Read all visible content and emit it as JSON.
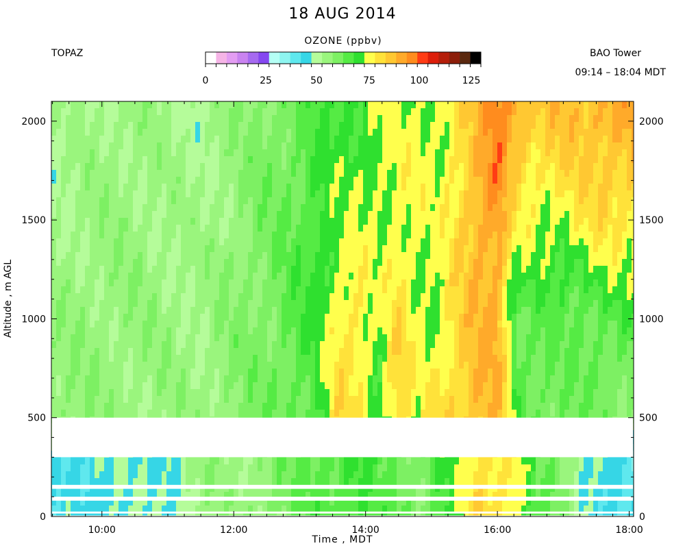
{
  "chart_data": {
    "type": "heatmap",
    "title": "18 AUG 2014",
    "instrument": "TOPAZ",
    "site": "BAO Tower",
    "time_range": "09:14 – 18:04 MDT",
    "colorbar": {
      "label": "OZONE (ppbv)",
      "range": [
        0,
        125
      ],
      "ticks": [
        "0",
        "25",
        "50",
        "75",
        "100",
        "125"
      ],
      "colors": [
        "#ffffff",
        "#f5b4e6",
        "#e39df2",
        "#c983f0",
        "#a66af0",
        "#8547f0",
        "#b4fff5",
        "#8ef5f0",
        "#5fe8ee",
        "#36d6e6",
        "#b5fc9a",
        "#9af57d",
        "#7df063",
        "#55eb44",
        "#2fe02f",
        "#ffff4d",
        "#ffe23a",
        "#ffc832",
        "#ffaa2a",
        "#ff8c1e",
        "#ff3c14",
        "#dc1e0a",
        "#b41e0a",
        "#8c1e0a",
        "#5a280f",
        "#000000"
      ]
    },
    "xlabel": "Time , MDT",
    "ylabel": "Altitude , m AGL",
    "xlim": [
      "09:14",
      "18:04"
    ],
    "x_ticks": [
      "10:00",
      "12:00",
      "14:00",
      "16:00",
      "18:00"
    ],
    "ylim": [
      0,
      2100
    ],
    "y_ticks": [
      "0",
      "500",
      "1000",
      "1500",
      "2000"
    ],
    "missing_altitude_bands_m": [
      [
        300,
        500
      ],
      [
        140,
        160
      ],
      [
        80,
        100
      ],
      [
        15,
        25
      ],
      [
        0,
        5
      ]
    ],
    "times_hr": [
      9.3,
      10.0,
      10.5,
      11.0,
      11.5,
      12.0,
      12.5,
      13.0,
      13.3,
      13.6,
      13.9,
      14.2,
      14.5,
      14.8,
      15.1,
      15.4,
      15.7,
      16.0,
      16.3,
      16.6,
      17.0,
      17.3,
      17.6,
      18.0
    ],
    "altitudes_m": [
      0,
      300,
      500,
      1000,
      1500,
      2000
    ],
    "ozone_ppbv": [
      [
        43,
        48,
        47,
        48,
        55,
        55,
        58,
        62,
        65,
        66,
        68,
        63,
        63,
        60,
        66,
        70,
        80,
        80,
        75,
        62,
        60,
        50,
        45,
        40
      ],
      [
        43,
        48,
        47,
        48,
        55,
        55,
        58,
        62,
        65,
        66,
        68,
        63,
        63,
        60,
        66,
        70,
        80,
        80,
        75,
        62,
        60,
        50,
        45,
        40
      ],
      [
        58,
        56,
        55,
        55,
        55,
        58,
        60,
        63,
        68,
        80,
        76,
        70,
        82,
        72,
        80,
        82,
        86,
        86,
        66,
        62,
        62,
        60,
        60,
        58
      ],
      [
        55,
        56,
        56,
        55,
        54,
        58,
        60,
        66,
        68,
        78,
        78,
        70,
        80,
        74,
        72,
        80,
        86,
        88,
        62,
        64,
        62,
        63,
        65,
        65
      ],
      [
        53,
        55,
        55,
        54,
        53,
        56,
        60,
        64,
        70,
        70,
        72,
        73,
        76,
        73,
        72,
        80,
        88,
        90,
        75,
        74,
        74,
        77,
        79,
        78
      ],
      [
        52,
        54,
        55,
        53,
        52,
        56,
        60,
        62,
        66,
        68,
        70,
        73,
        72,
        73,
        74,
        78,
        84,
        96,
        88,
        82,
        84,
        85,
        88,
        88
      ]
    ]
  }
}
